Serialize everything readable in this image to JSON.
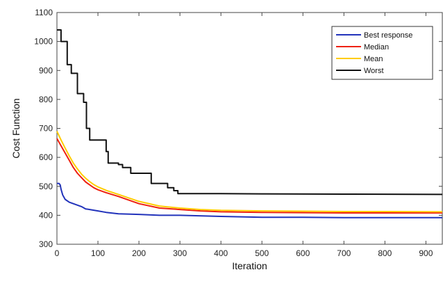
{
  "chart_data": {
    "type": "line",
    "title": "",
    "xlabel": "Iteration",
    "ylabel": "Cost Function",
    "xlim": [
      0,
      940
    ],
    "ylim": [
      300,
      1100
    ],
    "xticks": [
      0,
      100,
      200,
      300,
      400,
      500,
      600,
      700,
      800,
      900
    ],
    "yticks": [
      300,
      400,
      500,
      600,
      700,
      800,
      900,
      1000,
      1100
    ],
    "grid": false,
    "legend_position": "top-right",
    "series": [
      {
        "name": "Best response",
        "color": "#2233bb",
        "points": [
          [
            0,
            510
          ],
          [
            5,
            510
          ],
          [
            8,
            505
          ],
          [
            10,
            490
          ],
          [
            14,
            470
          ],
          [
            20,
            455
          ],
          [
            30,
            445
          ],
          [
            40,
            440
          ],
          [
            50,
            435
          ],
          [
            60,
            430
          ],
          [
            70,
            422
          ],
          [
            80,
            420
          ],
          [
            100,
            415
          ],
          [
            120,
            410
          ],
          [
            150,
            405
          ],
          [
            200,
            403
          ],
          [
            250,
            400
          ],
          [
            300,
            400
          ],
          [
            400,
            396
          ],
          [
            500,
            393
          ],
          [
            600,
            393
          ],
          [
            700,
            392
          ],
          [
            800,
            392
          ],
          [
            940,
            392
          ]
        ]
      },
      {
        "name": "Median",
        "color": "#ee2211",
        "points": [
          [
            0,
            665
          ],
          [
            10,
            640
          ],
          [
            20,
            615
          ],
          [
            30,
            590
          ],
          [
            40,
            565
          ],
          [
            50,
            545
          ],
          [
            60,
            530
          ],
          [
            70,
            515
          ],
          [
            80,
            505
          ],
          [
            90,
            495
          ],
          [
            100,
            488
          ],
          [
            120,
            478
          ],
          [
            150,
            465
          ],
          [
            200,
            440
          ],
          [
            250,
            425
          ],
          [
            300,
            420
          ],
          [
            350,
            415
          ],
          [
            400,
            412
          ],
          [
            500,
            410
          ],
          [
            600,
            409
          ],
          [
            700,
            408
          ],
          [
            800,
            408
          ],
          [
            940,
            408
          ]
        ]
      },
      {
        "name": "Mean",
        "color": "#ffcc00",
        "points": [
          [
            0,
            690
          ],
          [
            10,
            660
          ],
          [
            20,
            632
          ],
          [
            30,
            605
          ],
          [
            40,
            580
          ],
          [
            50,
            560
          ],
          [
            60,
            542
          ],
          [
            70,
            528
          ],
          [
            80,
            516
          ],
          [
            90,
            506
          ],
          [
            100,
            498
          ],
          [
            120,
            486
          ],
          [
            150,
            472
          ],
          [
            200,
            448
          ],
          [
            250,
            432
          ],
          [
            300,
            425
          ],
          [
            350,
            420
          ],
          [
            400,
            417
          ],
          [
            500,
            415
          ],
          [
            600,
            414
          ],
          [
            700,
            413
          ],
          [
            800,
            413
          ],
          [
            940,
            412
          ]
        ]
      },
      {
        "name": "Worst",
        "color": "#111111",
        "points": [
          [
            0,
            1040
          ],
          [
            10,
            1040
          ],
          [
            10,
            1000
          ],
          [
            25,
            1000
          ],
          [
            25,
            920
          ],
          [
            35,
            920
          ],
          [
            35,
            890
          ],
          [
            50,
            890
          ],
          [
            50,
            820
          ],
          [
            65,
            820
          ],
          [
            65,
            790
          ],
          [
            72,
            790
          ],
          [
            72,
            700
          ],
          [
            80,
            700
          ],
          [
            80,
            660
          ],
          [
            120,
            660
          ],
          [
            120,
            620
          ],
          [
            125,
            620
          ],
          [
            125,
            580
          ],
          [
            150,
            580
          ],
          [
            150,
            575
          ],
          [
            160,
            575
          ],
          [
            160,
            565
          ],
          [
            180,
            565
          ],
          [
            180,
            545
          ],
          [
            230,
            545
          ],
          [
            230,
            510
          ],
          [
            270,
            510
          ],
          [
            270,
            495
          ],
          [
            285,
            495
          ],
          [
            285,
            485
          ],
          [
            295,
            485
          ],
          [
            295,
            475
          ],
          [
            400,
            475
          ],
          [
            500,
            474
          ],
          [
            700,
            473
          ],
          [
            940,
            472
          ]
        ]
      }
    ]
  }
}
